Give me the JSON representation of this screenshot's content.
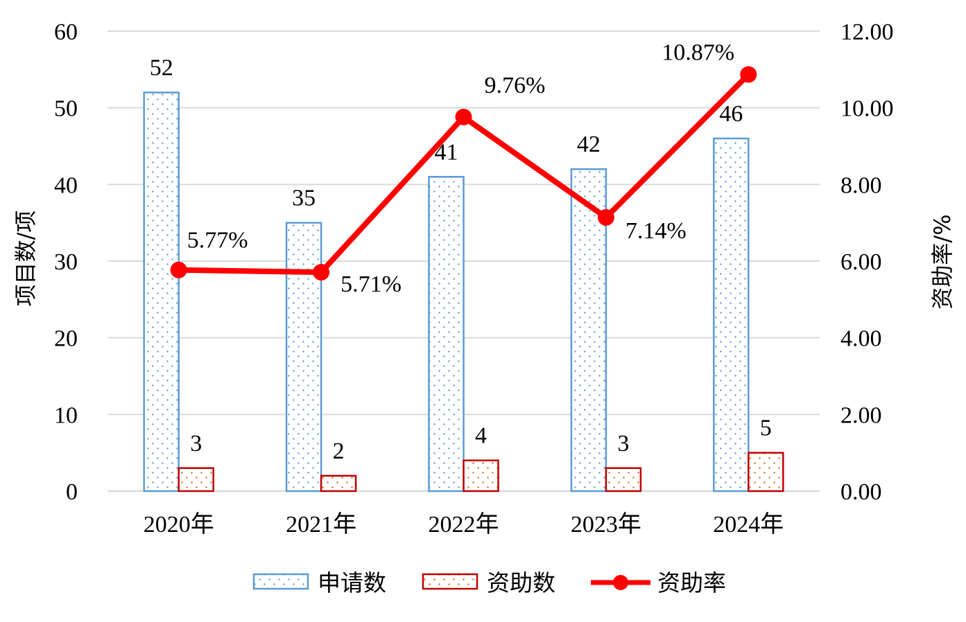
{
  "chart_data": {
    "type": "bar",
    "categories": [
      "2020年",
      "2021年",
      "2022年",
      "2023年",
      "2024年"
    ],
    "series": [
      {
        "name": "申请数",
        "kind": "bar",
        "axis": "left",
        "values": [
          52,
          35,
          41,
          42,
          46
        ],
        "labels": [
          "52",
          "35",
          "41",
          "42",
          "46"
        ],
        "color": "#5b9bd5",
        "pattern": "dots"
      },
      {
        "name": "资助数",
        "kind": "bar",
        "axis": "left",
        "values": [
          3,
          2,
          4,
          3,
          5
        ],
        "labels": [
          "3",
          "2",
          "4",
          "3",
          "5"
        ],
        "color": "#c00000",
        "dot_color": "#e07b39",
        "pattern": "dots"
      },
      {
        "name": "资助率",
        "kind": "line",
        "axis": "right",
        "values": [
          5.77,
          5.71,
          9.76,
          7.14,
          10.87
        ],
        "labels": [
          "5.77%",
          "5.71%",
          "9.76%",
          "7.14%",
          "10.87%"
        ],
        "color": "#ff0000"
      }
    ],
    "y_left": {
      "label": "项目数/项",
      "ylim": [
        0,
        60
      ],
      "ticks": [
        "0",
        "10",
        "20",
        "30",
        "40",
        "50",
        "60"
      ]
    },
    "y_right": {
      "label": "资助率/%",
      "ylim": [
        0,
        12
      ],
      "ticks": [
        "0.00",
        "2.00",
        "4.00",
        "6.00",
        "8.00",
        "10.00",
        "12.00"
      ]
    },
    "grid": true,
    "grid_color": "#d9d9d9",
    "legend_position": "bottom"
  }
}
